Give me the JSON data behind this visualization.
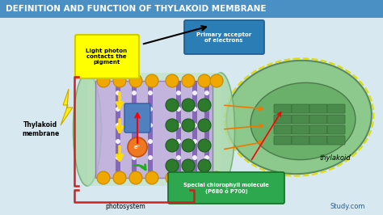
{
  "title": "DEFINITION AND FUNCTION OF THYLAKOID MEMBRANE",
  "title_bg": "#4a90c4",
  "title_color": "white",
  "bg_color": "#d8e8f0",
  "labels": {
    "light_photon": "Light photon\ncontacts the\npigment",
    "primary_acceptor": "Primary acceptor\nof electrons",
    "thylakoid_membrane": "Thylakoid\nmembrane",
    "photosystem": "photosystem",
    "thylakoid": "thylakoid",
    "special_chlorophyll": "Special chlorophyll molecule\n(P680 ó P700)",
    "study_com": "Study.com"
  },
  "colors": {
    "yellow_label_bg": "#ffff00",
    "yellow_label_border": "#cccc00",
    "cyan_label_bg": "#2a7db5",
    "green_label_bg": "#2ea84f",
    "membrane_green": "#7bc67e",
    "membrane_purple": "#9b77c7",
    "gold_circle": "#f0a800",
    "dark_green_circle": "#2d7a2d",
    "red_bracket": "#cc2222",
    "arrow_yellow": "#ffdd00",
    "arrow_black": "#111111",
    "arrow_orange": "#f07800",
    "electron_orange": "#f07800",
    "chloroplast_green": "#7cb87c",
    "chloroplast_dark": "#4a8a4a"
  }
}
